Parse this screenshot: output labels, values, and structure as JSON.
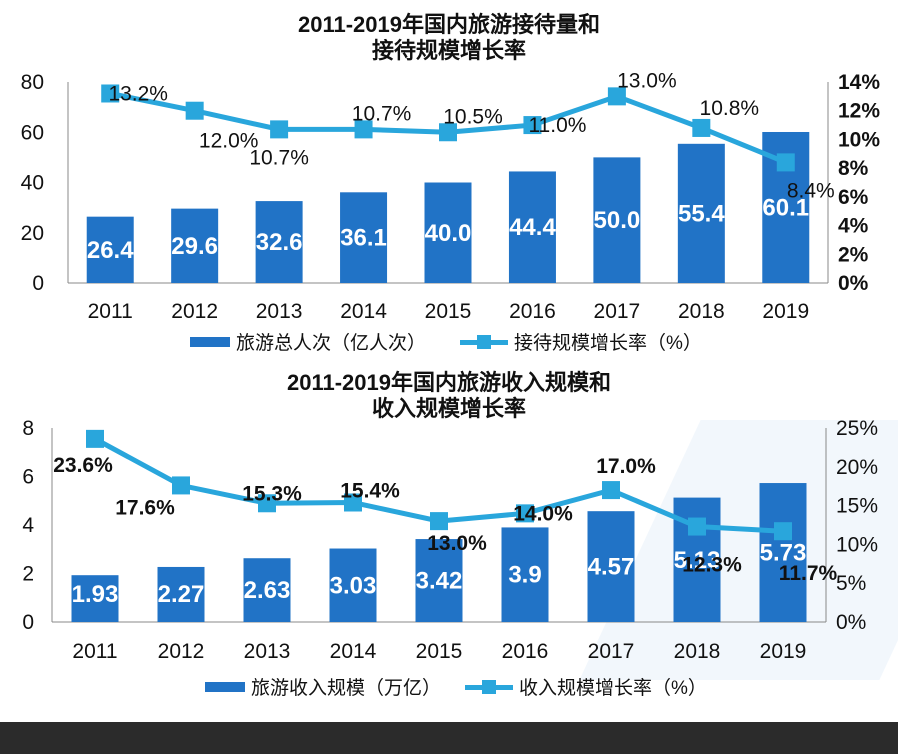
{
  "colors": {
    "bar": "#2173c6",
    "line": "#29a6dc",
    "bar_label": "#ffffff",
    "text": "#111111"
  },
  "chart_data": [
    {
      "type": "bar",
      "title": "2011-2019年国内旅游接待量和接待规模增长率",
      "title_lines": [
        "2011-2019年国内旅游接待量和",
        "接待规模增长率"
      ],
      "categories": [
        "2011",
        "2012",
        "2013",
        "2014",
        "2015",
        "2016",
        "2017",
        "2018",
        "2019"
      ],
      "series": [
        {
          "name": "旅游总人次（亿人次）",
          "type": "bar",
          "axis": "left",
          "values": [
            26.4,
            29.6,
            32.6,
            36.1,
            40.0,
            44.4,
            50.0,
            55.4,
            60.1
          ],
          "labels": [
            "26.4",
            "29.6",
            "32.6",
            "36.1",
            "40.0",
            "44.4",
            "50.0",
            "55.4",
            "60.1"
          ]
        },
        {
          "name": "接待规模增长率（%）",
          "type": "line",
          "axis": "right",
          "values": [
            13.2,
            12.0,
            10.7,
            10.7,
            10.5,
            11.0,
            13.0,
            10.8,
            8.4
          ],
          "labels": [
            "13.2%",
            "12.0%",
            "10.7%",
            "10.7%",
            "10.5%",
            "11.0%",
            "13.0%",
            "10.8%",
            "8.4%"
          ]
        }
      ],
      "ylim": [
        0,
        80
      ],
      "yticks": [
        0,
        20,
        40,
        60,
        80
      ],
      "y2lim": [
        0,
        14
      ],
      "y2ticks": [
        0,
        2,
        4,
        6,
        8,
        10,
        12,
        14
      ],
      "y2tick_labels": [
        "0%",
        "2%",
        "4%",
        "6%",
        "8%",
        "10%",
        "12%",
        "14%"
      ],
      "legend": "bottom"
    },
    {
      "type": "bar",
      "title": "2011-2019年国内旅游收入规模和收入规模增长率",
      "title_lines": [
        "2011-2019年国内旅游收入规模和",
        "收入规模增长率"
      ],
      "categories": [
        "2011",
        "2012",
        "2013",
        "2014",
        "2015",
        "2016",
        "2017",
        "2018",
        "2019"
      ],
      "series": [
        {
          "name": "旅游收入规模（万亿）",
          "type": "bar",
          "axis": "left",
          "values": [
            1.93,
            2.27,
            2.63,
            3.03,
            3.42,
            3.9,
            4.57,
            5.13,
            5.73
          ],
          "labels": [
            "1.93",
            "2.27",
            "2.63",
            "3.03",
            "3.42",
            "3.9",
            "4.57",
            "5.13",
            "5.73"
          ]
        },
        {
          "name": "收入规模增长率（%）",
          "type": "line",
          "axis": "right",
          "values": [
            23.6,
            17.6,
            15.3,
            15.4,
            13.0,
            14.0,
            17.0,
            12.3,
            11.7
          ],
          "labels": [
            "23.6%",
            "17.6%",
            "15.3%",
            "15.4%",
            "13.0%",
            "14.0%",
            "17.0%",
            "12.3%",
            "11.7%"
          ]
        }
      ],
      "ylim": [
        0,
        8
      ],
      "yticks": [
        0,
        2,
        4,
        6,
        8
      ],
      "y2lim": [
        0,
        25
      ],
      "y2ticks": [
        0,
        5,
        10,
        15,
        20,
        25
      ],
      "y2tick_labels": [
        "0%",
        "5%",
        "10%",
        "15%",
        "20%",
        "25%"
      ],
      "legend": "bottom"
    }
  ]
}
